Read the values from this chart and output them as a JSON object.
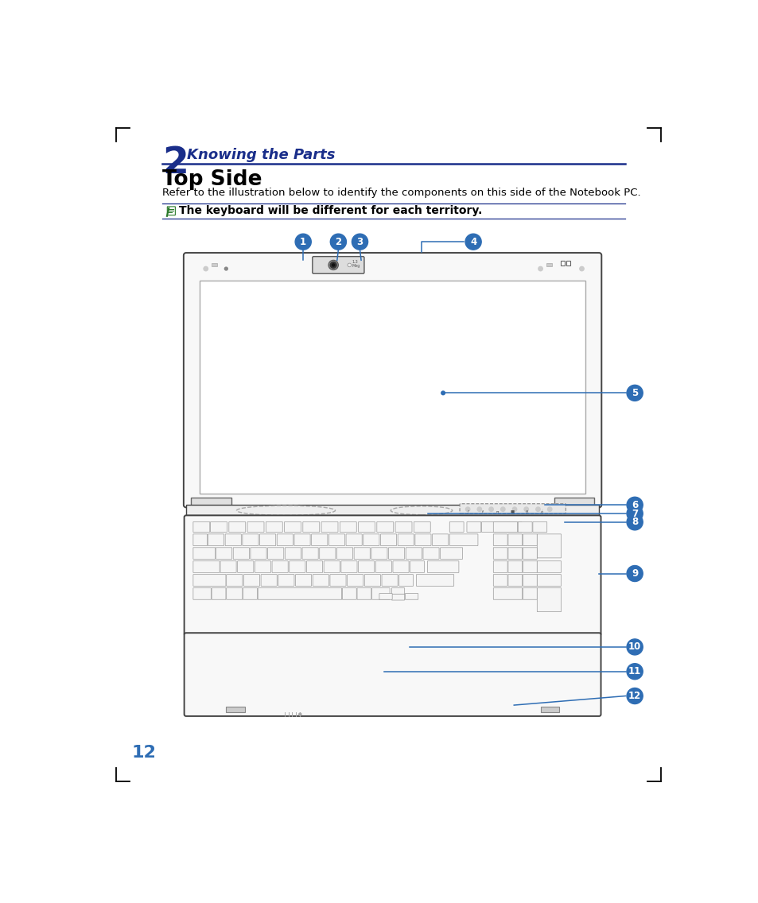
{
  "page_bg": "#ffffff",
  "chapter_num": "2",
  "chapter_title": "Knowing the Parts",
  "section_title": "Top Side",
  "section_desc": "Refer to the illustration below to identify the components on this side of the Notebook PC.",
  "note_text": "The keyboard will be different for each territory.",
  "page_num": "12",
  "blue_dark": "#1a2e8a",
  "circle_blue": "#2e6db4",
  "line_color": "#1a2e8a",
  "note_green": "#2a7a2a",
  "laptop_edge": "#444444",
  "laptop_fill": "#f8f8f8",
  "screen_fill": "#f0f0f0",
  "key_fill": "#f5f5f5",
  "key_edge": "#aaaaaa"
}
